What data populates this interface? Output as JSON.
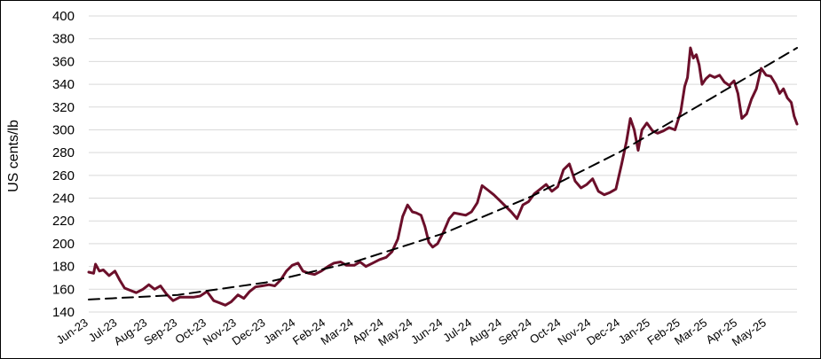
{
  "chart_data": {
    "type": "line",
    "title": "",
    "xlabel": "",
    "ylabel": "US cents/lb",
    "ylim": [
      140,
      400
    ],
    "yticks": [
      140,
      160,
      180,
      200,
      220,
      240,
      260,
      280,
      300,
      320,
      340,
      360,
      380,
      400
    ],
    "x_tick_labels": [
      "Jun-23",
      "Jul-23",
      "Aug-23",
      "Sep-23",
      "Oct-23",
      "Nov-23",
      "Dec-23",
      "Jan-24",
      "Feb-24",
      "Mar-24",
      "Apr-24",
      "May-24",
      "Jun-24",
      "Jul-24",
      "Aug-24",
      "Sep-24",
      "Oct-24",
      "Nov-24",
      "Dec-24",
      "Jan-25",
      "Feb-25",
      "Mar-25",
      "Apr-25",
      "May-25"
    ],
    "grid": true,
    "legend": "none",
    "series": [
      {
        "style": "solid",
        "color": "#6b0f2a",
        "points": [
          [
            "2023-06-01",
            175
          ],
          [
            "2023-06-06",
            174
          ],
          [
            "2023-06-08",
            182
          ],
          [
            "2023-06-12",
            176
          ],
          [
            "2023-06-16",
            177
          ],
          [
            "2023-06-22",
            172
          ],
          [
            "2023-06-28",
            176
          ],
          [
            "2023-07-03",
            168
          ],
          [
            "2023-07-08",
            161
          ],
          [
            "2023-07-14",
            159
          ],
          [
            "2023-07-20",
            157
          ],
          [
            "2023-07-27",
            160
          ],
          [
            "2023-08-02",
            164
          ],
          [
            "2023-08-08",
            160
          ],
          [
            "2023-08-14",
            163
          ],
          [
            "2023-08-20",
            156
          ],
          [
            "2023-08-27",
            150
          ],
          [
            "2023-09-03",
            153
          ],
          [
            "2023-09-10",
            153
          ],
          [
            "2023-09-17",
            153
          ],
          [
            "2023-09-24",
            154
          ],
          [
            "2023-10-01",
            158
          ],
          [
            "2023-10-08",
            150
          ],
          [
            "2023-10-14",
            148
          ],
          [
            "2023-10-20",
            146
          ],
          [
            "2023-10-26",
            149
          ],
          [
            "2023-11-02",
            155
          ],
          [
            "2023-11-08",
            152
          ],
          [
            "2023-11-14",
            158
          ],
          [
            "2023-11-20",
            162
          ],
          [
            "2023-11-27",
            163
          ],
          [
            "2023-12-04",
            164
          ],
          [
            "2023-12-10",
            163
          ],
          [
            "2023-12-16",
            168
          ],
          [
            "2023-12-22",
            176
          ],
          [
            "2023-12-28",
            181
          ],
          [
            "2024-01-03",
            183
          ],
          [
            "2024-01-08",
            176
          ],
          [
            "2024-01-14",
            174
          ],
          [
            "2024-01-20",
            173
          ],
          [
            "2024-01-27",
            176
          ],
          [
            "2024-02-03",
            180
          ],
          [
            "2024-02-09",
            183
          ],
          [
            "2024-02-16",
            184
          ],
          [
            "2024-02-22",
            181
          ],
          [
            "2024-03-01",
            181
          ],
          [
            "2024-03-07",
            184
          ],
          [
            "2024-03-13",
            180
          ],
          [
            "2024-03-20",
            183
          ],
          [
            "2024-03-27",
            186
          ],
          [
            "2024-04-03",
            188
          ],
          [
            "2024-04-09",
            193
          ],
          [
            "2024-04-15",
            204
          ],
          [
            "2024-04-20",
            224
          ],
          [
            "2024-04-25",
            234
          ],
          [
            "2024-04-30",
            228
          ],
          [
            "2024-05-04",
            227
          ],
          [
            "2024-05-09",
            225
          ],
          [
            "2024-05-13",
            215
          ],
          [
            "2024-05-17",
            201
          ],
          [
            "2024-05-21",
            197
          ],
          [
            "2024-05-26",
            200
          ],
          [
            "2024-06-01",
            210
          ],
          [
            "2024-06-07",
            222
          ],
          [
            "2024-06-12",
            227
          ],
          [
            "2024-06-18",
            226
          ],
          [
            "2024-06-24",
            225
          ],
          [
            "2024-06-30",
            228
          ],
          [
            "2024-07-06",
            236
          ],
          [
            "2024-07-11",
            251
          ],
          [
            "2024-07-17",
            247
          ],
          [
            "2024-07-23",
            243
          ],
          [
            "2024-07-29",
            238
          ],
          [
            "2024-08-04",
            233
          ],
          [
            "2024-08-10",
            228
          ],
          [
            "2024-08-16",
            222
          ],
          [
            "2024-08-22",
            234
          ],
          [
            "2024-08-28",
            237
          ],
          [
            "2024-09-03",
            244
          ],
          [
            "2024-09-09",
            248
          ],
          [
            "2024-09-15",
            252
          ],
          [
            "2024-09-21",
            246
          ],
          [
            "2024-09-27",
            250
          ],
          [
            "2024-10-03",
            265
          ],
          [
            "2024-10-09",
            270
          ],
          [
            "2024-10-15",
            255
          ],
          [
            "2024-10-21",
            249
          ],
          [
            "2024-10-27",
            252
          ],
          [
            "2024-11-02",
            257
          ],
          [
            "2024-11-08",
            246
          ],
          [
            "2024-11-14",
            243
          ],
          [
            "2024-11-20",
            245
          ],
          [
            "2024-11-26",
            248
          ],
          [
            "2024-12-02",
            270
          ],
          [
            "2024-12-07",
            290
          ],
          [
            "2024-12-11",
            310
          ],
          [
            "2024-12-15",
            300
          ],
          [
            "2024-12-19",
            282
          ],
          [
            "2024-12-23",
            300
          ],
          [
            "2024-12-28",
            306
          ],
          [
            "2025-01-03",
            299
          ],
          [
            "2025-01-08",
            297
          ],
          [
            "2025-01-14",
            299
          ],
          [
            "2025-01-20",
            302
          ],
          [
            "2025-01-26",
            300
          ],
          [
            "2025-02-01",
            316
          ],
          [
            "2025-02-05",
            338
          ],
          [
            "2025-02-08",
            346
          ],
          [
            "2025-02-11",
            372
          ],
          [
            "2025-02-14",
            363
          ],
          [
            "2025-02-17",
            366
          ],
          [
            "2025-02-20",
            357
          ],
          [
            "2025-02-23",
            340
          ],
          [
            "2025-02-27",
            345
          ],
          [
            "2025-03-03",
            348
          ],
          [
            "2025-03-08",
            346
          ],
          [
            "2025-03-13",
            348
          ],
          [
            "2025-03-18",
            342
          ],
          [
            "2025-03-23",
            339
          ],
          [
            "2025-03-28",
            343
          ],
          [
            "2025-04-01",
            332
          ],
          [
            "2025-04-05",
            310
          ],
          [
            "2025-04-10",
            314
          ],
          [
            "2025-04-15",
            327
          ],
          [
            "2025-04-20",
            336
          ],
          [
            "2025-04-25",
            354
          ],
          [
            "2025-04-30",
            348
          ],
          [
            "2025-05-05",
            347
          ],
          [
            "2025-05-10",
            340
          ],
          [
            "2025-05-14",
            332
          ],
          [
            "2025-05-18",
            336
          ],
          [
            "2025-05-22",
            328
          ],
          [
            "2025-05-26",
            324
          ],
          [
            "2025-05-29",
            312
          ],
          [
            "2025-06-01",
            305
          ]
        ]
      },
      {
        "style": "dashed",
        "color": "#000000",
        "points": [
          [
            "2023-06-01",
            151
          ],
          [
            "2023-09-01",
            155
          ],
          [
            "2023-12-01",
            166
          ],
          [
            "2024-03-01",
            184
          ],
          [
            "2024-06-01",
            209
          ],
          [
            "2024-09-01",
            242
          ],
          [
            "2024-12-01",
            281
          ],
          [
            "2025-03-01",
            326
          ],
          [
            "2025-06-01",
            372
          ]
        ]
      }
    ]
  },
  "colors": {
    "series_line": "#6b0f2a",
    "trend_line": "#000000",
    "grid": "#d9d9d9",
    "frame": "#000000"
  }
}
